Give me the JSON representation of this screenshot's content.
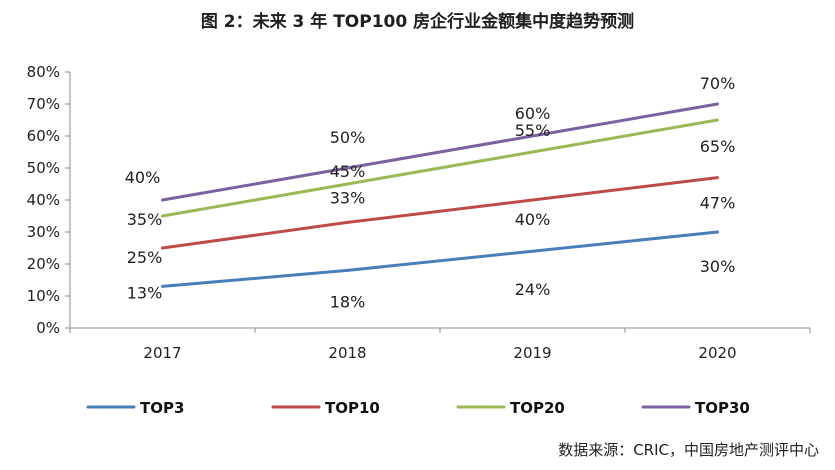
{
  "chart_data": {
    "type": "line",
    "title": "图 2：未来 3 年 TOP100 房企行业金额集中度趋势预测",
    "categories": [
      "2017",
      "2018",
      "2019",
      "2020"
    ],
    "ylim": [
      0,
      80
    ],
    "yticks": [
      "0%",
      "10%",
      "20%",
      "30%",
      "40%",
      "50%",
      "60%",
      "70%",
      "80%"
    ],
    "series": [
      {
        "name": "TOP3",
        "color": "#4a7ebb",
        "values": [
          13,
          18,
          24,
          30
        ],
        "labels": [
          "13%",
          "18%",
          "24%",
          "30%"
        ]
      },
      {
        "name": "TOP10",
        "color": "#be4b48",
        "values": [
          25,
          33,
          40,
          47
        ],
        "labels": [
          "25%",
          "33%",
          "40%",
          "47%"
        ]
      },
      {
        "name": "TOP20",
        "color": "#98b954",
        "values": [
          35,
          45,
          55,
          65
        ],
        "labels": [
          "35%",
          "45%",
          "55%",
          "65%"
        ]
      },
      {
        "name": "TOP30",
        "color": "#7d60a0",
        "values": [
          40,
          50,
          60,
          70
        ],
        "labels": [
          "40%",
          "50%",
          "60%",
          "70%"
        ]
      }
    ],
    "legend_position": "bottom",
    "source": "数据来源：CRIC，中国房地产测评中心"
  }
}
